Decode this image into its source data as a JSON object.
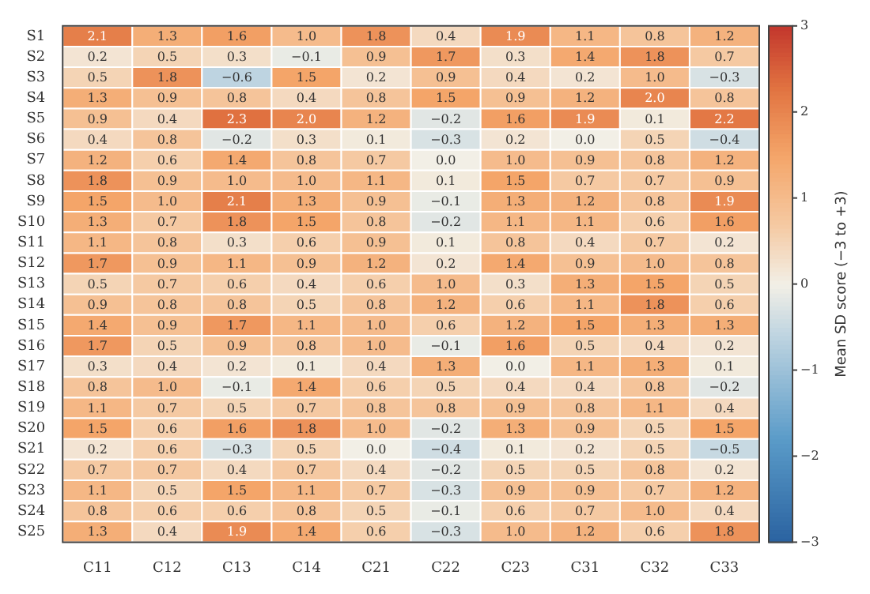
{
  "chart_data": {
    "type": "heatmap",
    "clabel": "Mean SD score (−3 to +3)",
    "categories": [
      "C11",
      "C12",
      "C13",
      "C14",
      "C21",
      "C22",
      "C23",
      "C31",
      "C32",
      "C33"
    ],
    "y_categories": [
      "S1",
      "S2",
      "S3",
      "S4",
      "S5",
      "S6",
      "S7",
      "S8",
      "S9",
      "S10",
      "S11",
      "S12",
      "S13",
      "S14",
      "S15",
      "S16",
      "S17",
      "S18",
      "S19",
      "S20",
      "S21",
      "S22",
      "S23",
      "S24",
      "S25"
    ],
    "cells": [
      [
        2.1,
        1.3,
        1.6,
        1.0,
        1.8,
        0.4,
        1.9,
        1.1,
        0.8,
        1.2
      ],
      [
        0.2,
        0.5,
        0.3,
        -0.1,
        0.9,
        1.7,
        0.3,
        1.4,
        1.8,
        0.7
      ],
      [
        0.5,
        1.8,
        -0.6,
        1.5,
        0.2,
        0.9,
        0.4,
        0.2,
        1.0,
        -0.3
      ],
      [
        1.3,
        0.9,
        0.8,
        0.4,
        0.8,
        1.5,
        0.9,
        1.2,
        2.0,
        0.8
      ],
      [
        0.9,
        0.4,
        2.3,
        2.0,
        1.2,
        -0.2,
        1.6,
        1.9,
        0.1,
        2.2
      ],
      [
        0.4,
        0.8,
        -0.2,
        0.3,
        0.1,
        -0.3,
        0.2,
        0.0,
        0.5,
        -0.4
      ],
      [
        1.2,
        0.6,
        1.4,
        0.8,
        0.7,
        0.0,
        1.0,
        0.9,
        0.8,
        1.2
      ],
      [
        1.8,
        0.9,
        1.0,
        1.0,
        1.1,
        0.1,
        1.5,
        0.7,
        0.7,
        0.9
      ],
      [
        1.5,
        1.0,
        2.1,
        1.3,
        0.9,
        -0.1,
        1.3,
        1.2,
        0.8,
        1.9
      ],
      [
        1.3,
        0.7,
        1.8,
        1.5,
        0.8,
        -0.2,
        1.1,
        1.1,
        0.6,
        1.6
      ],
      [
        1.1,
        0.8,
        0.3,
        0.6,
        0.9,
        0.1,
        0.8,
        0.4,
        0.7,
        0.2
      ],
      [
        1.7,
        0.9,
        1.1,
        0.9,
        1.2,
        0.2,
        1.4,
        0.9,
        1.0,
        0.8
      ],
      [
        0.5,
        0.7,
        0.6,
        0.4,
        0.6,
        1.0,
        0.3,
        1.3,
        1.5,
        0.5
      ],
      [
        0.9,
        0.8,
        0.8,
        0.5,
        0.8,
        1.2,
        0.6,
        1.1,
        1.8,
        0.6
      ],
      [
        1.4,
        0.9,
        1.7,
        1.1,
        1.0,
        0.6,
        1.2,
        1.5,
        1.3,
        1.3
      ],
      [
        1.7,
        0.5,
        0.9,
        0.8,
        1.0,
        -0.1,
        1.6,
        0.5,
        0.4,
        0.2
      ],
      [
        0.3,
        0.4,
        0.2,
        0.1,
        0.4,
        1.3,
        0.0,
        1.1,
        1.3,
        0.1
      ],
      [
        0.8,
        1.0,
        -0.1,
        1.4,
        0.6,
        0.5,
        0.4,
        0.4,
        0.8,
        -0.2
      ],
      [
        1.1,
        0.7,
        0.5,
        0.7,
        0.8,
        0.8,
        0.9,
        0.8,
        1.1,
        0.4
      ],
      [
        1.5,
        0.6,
        1.6,
        1.8,
        1.0,
        -0.2,
        1.3,
        0.9,
        0.5,
        1.5
      ],
      [
        0.2,
        0.6,
        -0.3,
        0.5,
        0.0,
        -0.4,
        0.1,
        0.2,
        0.5,
        -0.5
      ],
      [
        0.7,
        0.7,
        0.4,
        0.7,
        0.4,
        -0.2,
        0.5,
        0.5,
        0.8,
        0.2
      ],
      [
        1.1,
        0.5,
        1.5,
        1.1,
        0.7,
        -0.3,
        0.9,
        0.9,
        0.7,
        1.2
      ],
      [
        0.8,
        0.6,
        0.6,
        0.8,
        0.5,
        -0.1,
        0.6,
        0.7,
        1.0,
        0.4
      ],
      [
        1.3,
        0.4,
        1.9,
        1.4,
        0.6,
        -0.3,
        1.0,
        1.2,
        0.6,
        1.8
      ]
    ],
    "cell_labels": [
      [
        "2.1",
        "1.3",
        "1.6",
        "1.0",
        "1.8",
        "0.4",
        "1.9",
        "1.1",
        "0.8",
        "1.2"
      ],
      [
        "0.2",
        "0.5",
        "0.3",
        "−0.1",
        "0.9",
        "1.7",
        "0.3",
        "1.4",
        "1.8",
        "0.7"
      ],
      [
        "0.5",
        "1.8",
        "−0.6",
        "1.5",
        "0.2",
        "0.9",
        "0.4",
        "0.2",
        "1.0",
        "−0.3"
      ],
      [
        "1.3",
        "0.9",
        "0.8",
        "0.4",
        "0.8",
        "1.5",
        "0.9",
        "1.2",
        "2.0",
        "0.8"
      ],
      [
        "0.9",
        "0.4",
        "2.3",
        "2.0",
        "1.2",
        "−0.2",
        "1.6",
        "1.9",
        "0.1",
        "2.2"
      ],
      [
        "0.4",
        "0.8",
        "−0.2",
        "0.3",
        "0.1",
        "−0.3",
        "0.2",
        "0.0",
        "0.5",
        "−0.4"
      ],
      [
        "1.2",
        "0.6",
        "1.4",
        "0.8",
        "0.7",
        "0.0",
        "1.0",
        "0.9",
        "0.8",
        "1.2"
      ],
      [
        "1.8",
        "0.9",
        "1.0",
        "1.0",
        "1.1",
        "0.1",
        "1.5",
        "0.7",
        "0.7",
        "0.9"
      ],
      [
        "1.5",
        "1.0",
        "2.1",
        "1.3",
        "0.9",
        "−0.1",
        "1.3",
        "1.2",
        "0.8",
        "1.9"
      ],
      [
        "1.3",
        "0.7",
        "1.8",
        "1.5",
        "0.8",
        "−0.2",
        "1.1",
        "1.1",
        "0.6",
        "1.6"
      ],
      [
        "1.1",
        "0.8",
        "0.3",
        "0.6",
        "0.9",
        "0.1",
        "0.8",
        "0.4",
        "0.7",
        "0.2"
      ],
      [
        "1.7",
        "0.9",
        "1.1",
        "0.9",
        "1.2",
        "0.2",
        "1.4",
        "0.9",
        "1.0",
        "0.8"
      ],
      [
        "0.5",
        "0.7",
        "0.6",
        "0.4",
        "0.6",
        "1.0",
        "0.3",
        "1.3",
        "1.5",
        "0.5"
      ],
      [
        "0.9",
        "0.8",
        "0.8",
        "0.5",
        "0.8",
        "1.2",
        "0.6",
        "1.1",
        "1.8",
        "0.6"
      ],
      [
        "1.4",
        "0.9",
        "1.7",
        "1.1",
        "1.0",
        "0.6",
        "1.2",
        "1.5",
        "1.3",
        "1.3"
      ],
      [
        "1.7",
        "0.5",
        "0.9",
        "0.8",
        "1.0",
        "−0.1",
        "1.6",
        "0.5",
        "0.4",
        "0.2"
      ],
      [
        "0.3",
        "0.4",
        "0.2",
        "0.1",
        "0.4",
        "1.3",
        "0.0",
        "1.1",
        "1.3",
        "0.1"
      ],
      [
        "0.8",
        "1.0",
        "−0.1",
        "1.4",
        "0.6",
        "0.5",
        "0.4",
        "0.4",
        "0.8",
        "−0.2"
      ],
      [
        "1.1",
        "0.7",
        "0.5",
        "0.7",
        "0.8",
        "0.8",
        "0.9",
        "0.8",
        "1.1",
        "0.4"
      ],
      [
        "1.5",
        "0.6",
        "1.6",
        "1.8",
        "1.0",
        "−0.2",
        "1.3",
        "0.9",
        "0.5",
        "1.5"
      ],
      [
        "0.2",
        "0.6",
        "−0.3",
        "0.5",
        "0.0",
        "−0.4",
        "0.1",
        "0.2",
        "0.5",
        "−0.5"
      ],
      [
        "0.7",
        "0.7",
        "0.4",
        "0.7",
        "0.4",
        "−0.2",
        "0.5",
        "0.5",
        "0.8",
        "0.2"
      ],
      [
        "1.1",
        "0.5",
        "1.5",
        "1.1",
        "0.7",
        "−0.3",
        "0.9",
        "0.9",
        "0.7",
        "1.2"
      ],
      [
        "0.8",
        "0.6",
        "0.6",
        "0.8",
        "0.5",
        "−0.1",
        "0.6",
        "0.7",
        "1.0",
        "0.4"
      ],
      [
        "1.3",
        "0.4",
        "1.9",
        "1.4",
        "0.6",
        "−0.3",
        "1.0",
        "1.2",
        "0.6",
        "1.8"
      ]
    ],
    "data_labels": true,
    "clim": [
      -3,
      3
    ],
    "cticks": [
      -3,
      -2,
      -1,
      0,
      1,
      2,
      3
    ]
  }
}
